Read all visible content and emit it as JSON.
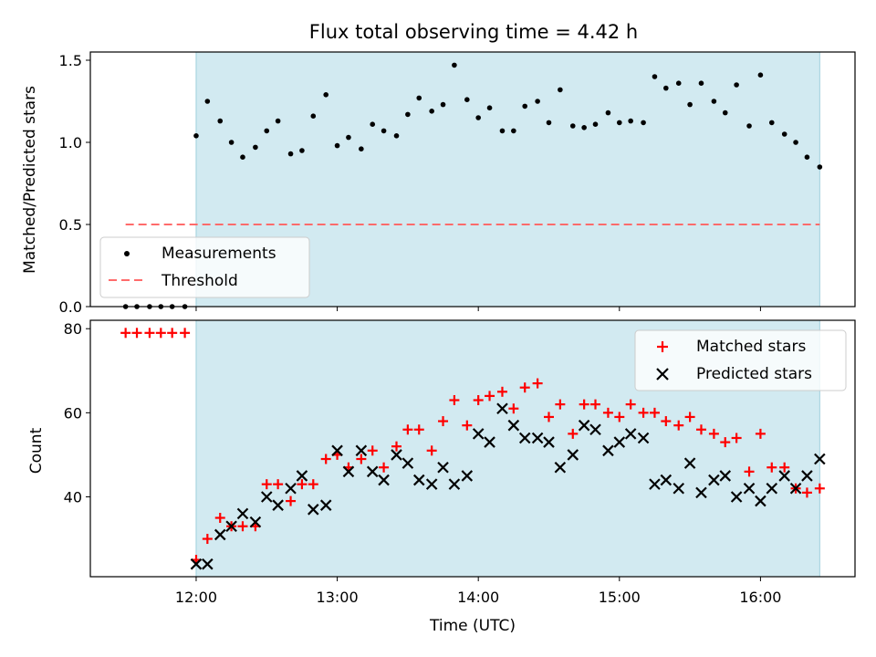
{
  "title": "Flux total observing time = 4.42 h",
  "colors": {
    "shade": "#add8e6",
    "matched": "#ff0000",
    "predicted": "#000000",
    "threshold": "#ff6b6b",
    "measure": "#000000"
  },
  "chart_data": [
    {
      "type": "scatter",
      "ylabel": "Matched/Predicted stars",
      "ylim": [
        0,
        1.55
      ],
      "yticks": [
        "0.0",
        "0.5",
        "1.0",
        "1.5"
      ],
      "shaded_region_hours": [
        12.0,
        16.42
      ],
      "legend": {
        "placement": "lower-left",
        "entries": [
          "Measurements",
          "Threshold"
        ]
      },
      "series": [
        {
          "name": "Measurements",
          "x": [
            11.5,
            11.58,
            11.67,
            11.75,
            11.83,
            11.92,
            12.0,
            12.08,
            12.17,
            12.25,
            12.33,
            12.42,
            12.5,
            12.58,
            12.67,
            12.75,
            12.83,
            12.92,
            13.0,
            13.08,
            13.17,
            13.25,
            13.33,
            13.42,
            13.5,
            13.58,
            13.67,
            13.75,
            13.83,
            13.92,
            14.0,
            14.08,
            14.17,
            14.25,
            14.33,
            14.42,
            14.5,
            14.58,
            14.67,
            14.75,
            14.83,
            14.92,
            15.0,
            15.08,
            15.17,
            15.25,
            15.33,
            15.42,
            15.5,
            15.58,
            15.67,
            15.75,
            15.83,
            15.92,
            16.0,
            16.08,
            16.17,
            16.25,
            16.33,
            16.42
          ],
          "y": [
            0,
            0,
            0,
            0,
            0,
            0,
            1.04,
            1.25,
            1.13,
            1.0,
            0.91,
            0.97,
            1.07,
            1.13,
            0.93,
            0.95,
            1.16,
            1.29,
            0.98,
            1.03,
            0.96,
            1.11,
            1.07,
            1.04,
            1.17,
            1.27,
            1.19,
            1.23,
            1.47,
            1.26,
            1.15,
            1.21,
            1.07,
            1.07,
            1.22,
            1.25,
            1.12,
            1.32,
            1.1,
            1.09,
            1.11,
            1.18,
            1.12,
            1.13,
            1.12,
            1.4,
            1.33,
            1.36,
            1.23,
            1.36,
            1.25,
            1.18,
            1.35,
            1.1,
            1.41,
            1.12,
            1.05,
            1.0,
            0.91,
            0.85
          ]
        },
        {
          "name": "Threshold",
          "x": [
            11.5,
            16.42
          ],
          "y": [
            0.5,
            0.5
          ]
        }
      ]
    },
    {
      "type": "scatter",
      "xlabel": "Time (UTC)",
      "ylabel": "Count",
      "ylim": [
        21,
        82
      ],
      "yticks": [
        "40",
        "60",
        "80"
      ],
      "xlim_hours": [
        11.25,
        16.67
      ],
      "xticks": [
        "12:00",
        "13:00",
        "14:00",
        "15:00",
        "16:00"
      ],
      "legend": {
        "placement": "upper-right",
        "entries": [
          "Matched stars",
          "Predicted stars"
        ]
      },
      "series": [
        {
          "name": "Matched stars",
          "x": [
            11.5,
            11.58,
            11.67,
            11.75,
            11.83,
            11.92,
            12.0,
            12.08,
            12.17,
            12.25,
            12.33,
            12.42,
            12.5,
            12.58,
            12.67,
            12.75,
            12.83,
            12.92,
            13.0,
            13.08,
            13.17,
            13.25,
            13.33,
            13.42,
            13.5,
            13.58,
            13.67,
            13.75,
            13.83,
            13.92,
            14.0,
            14.08,
            14.17,
            14.25,
            14.33,
            14.42,
            14.5,
            14.58,
            14.67,
            14.75,
            14.83,
            14.92,
            15.0,
            15.08,
            15.17,
            15.25,
            15.33,
            15.42,
            15.5,
            15.58,
            15.67,
            15.75,
            15.83,
            15.92,
            16.0,
            16.08,
            16.17,
            16.25,
            16.33,
            16.42
          ],
          "y": [
            79,
            79,
            79,
            79,
            79,
            79,
            25,
            30,
            35,
            33,
            33,
            33,
            43,
            43,
            39,
            43,
            43,
            49,
            50,
            47,
            49,
            51,
            47,
            52,
            56,
            56,
            51,
            58,
            63,
            57,
            63,
            64,
            65,
            61,
            66,
            67,
            59,
            62,
            55,
            62,
            62,
            60,
            59,
            62,
            60,
            60,
            58,
            57,
            59,
            56,
            55,
            53,
            54,
            46,
            55,
            47,
            47,
            42,
            41,
            42
          ]
        },
        {
          "name": "Predicted stars",
          "x": [
            12.0,
            12.08,
            12.17,
            12.25,
            12.33,
            12.42,
            12.5,
            12.58,
            12.67,
            12.75,
            12.83,
            12.92,
            13.0,
            13.08,
            13.17,
            13.25,
            13.33,
            13.42,
            13.5,
            13.58,
            13.67,
            13.75,
            13.83,
            13.92,
            14.0,
            14.08,
            14.17,
            14.25,
            14.33,
            14.42,
            14.5,
            14.58,
            14.67,
            14.75,
            14.83,
            14.92,
            15.0,
            15.08,
            15.17,
            15.25,
            15.33,
            15.42,
            15.5,
            15.58,
            15.67,
            15.75,
            15.83,
            15.92,
            16.0,
            16.08,
            16.17,
            16.25,
            16.33,
            16.42
          ],
          "y": [
            24,
            24,
            31,
            33,
            36,
            34,
            40,
            38,
            42,
            45,
            37,
            38,
            51,
            46,
            51,
            46,
            44,
            50,
            48,
            44,
            43,
            47,
            43,
            45,
            55,
            53,
            61,
            57,
            54,
            54,
            53,
            47,
            50,
            57,
            56,
            51,
            53,
            55,
            54,
            43,
            44,
            42,
            48,
            41,
            44,
            45,
            40,
            42,
            39,
            42,
            45,
            42,
            45,
            49
          ]
        }
      ]
    }
  ]
}
